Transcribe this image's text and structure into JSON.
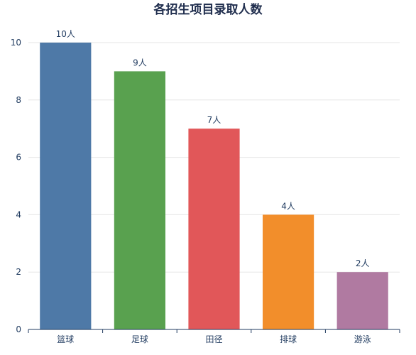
{
  "chart_data": {
    "type": "bar",
    "title": "各招生项目录取人数",
    "xlabel": "",
    "ylabel": "",
    "categories": [
      "篮球",
      "足球",
      "田径",
      "排球",
      "游泳"
    ],
    "values": [
      10,
      9,
      7,
      4,
      2
    ],
    "data_labels": [
      "10人",
      "9人",
      "7人",
      "4人",
      "2人"
    ],
    "colors": [
      "#4e79a7",
      "#59a14f",
      "#e15759",
      "#f28e2b",
      "#b07aa1"
    ],
    "ylim": [
      0,
      10
    ],
    "yticks": [
      0,
      2,
      4,
      6,
      8,
      10
    ],
    "grid": true,
    "legend": "none"
  }
}
